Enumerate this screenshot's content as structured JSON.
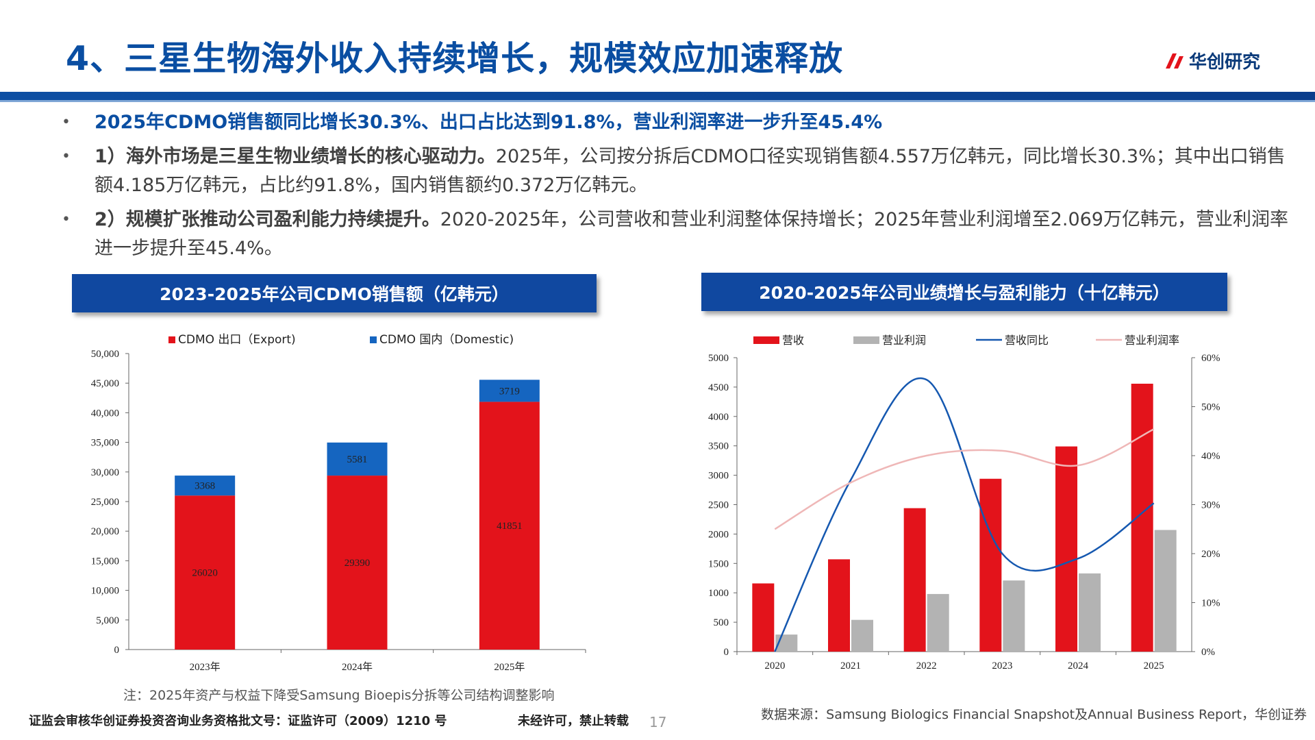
{
  "header": {
    "title": "4、三星生物海外收入持续增长，规模效应加速释放",
    "logo_text": "华创研究"
  },
  "bullets": [
    {
      "highlight": "2025年CDMO销售额同比增长30.3%、出口占比达到91.8%，营业利润率进一步升至45.4%",
      "lead": "",
      "text": ""
    },
    {
      "highlight": "",
      "lead": "1）海外市场是三星生物业绩增长的核心驱动力。",
      "text": "2025年，公司按分拆后CDMO口径实现销售额4.557万亿韩元，同比增长30.3%；其中出口销售额4.185万亿韩元，占比约91.8%，国内销售额约0.372万亿韩元。"
    },
    {
      "highlight": "",
      "lead": "2）规模扩张推动公司盈利能力持续提升。",
      "text": "2020-2025年，公司营收和营业利润整体保持增长；2025年营业利润增至2.069万亿韩元，营业利润率进一步提升至45.4%。"
    }
  ],
  "left_panel_title": "2023-2025年公司CDMO销售额（亿韩元）",
  "right_panel_title": "2020-2025年公司业绩增长与盈利能力（十亿韩元）",
  "note": "注：2025年资产与权益下降受Samsung Bioepis分拆等公司结构调整影响",
  "footer": {
    "license": "证监会审核华创证券投资咨询业务资格批文号：证监许可（2009）1210 号",
    "notice": "未经许可，禁止转载",
    "page": "17",
    "source": "数据来源：Samsung Biologics Financial Snapshot及Annual Business Report，华创证券"
  },
  "chart_data": [
    {
      "type": "bar",
      "stacked": true,
      "categories": [
        "2023年",
        "2024年",
        "2025年"
      ],
      "series": [
        {
          "name": "CDMO 出口（Export)",
          "values": [
            26020,
            29390,
            41851
          ],
          "color": "#e3131b"
        },
        {
          "name": "CDMO 国内（Domestic)",
          "values": [
            3368,
            5581,
            3719
          ],
          "color": "#1565c0"
        }
      ],
      "ylim": [
        0,
        50000
      ],
      "yticks": [
        "0",
        "5,000",
        "10,000",
        "15,000",
        "20,000",
        "25,000",
        "30,000",
        "35,000",
        "40,000",
        "45,000",
        "50,000"
      ],
      "legend": "top"
    },
    {
      "type": "bar",
      "categories": [
        "2020",
        "2021",
        "2022",
        "2023",
        "2024",
        "2025"
      ],
      "series": [
        {
          "name": "营收",
          "type": "bar",
          "axis": "left",
          "values": [
            1160,
            1570,
            2440,
            2940,
            3490,
            4557
          ],
          "color": "#e3131b"
        },
        {
          "name": "营业利润",
          "type": "bar",
          "axis": "left",
          "values": [
            290,
            540,
            980,
            1210,
            1330,
            2069
          ],
          "color": "#b3b3b3"
        },
        {
          "name": "营收同比",
          "type": "line",
          "axis": "right",
          "values": [
            0.0,
            0.35,
            0.555,
            0.2,
            0.19,
            0.303
          ],
          "color": "#1558b0"
        },
        {
          "name": "营业利润率",
          "type": "line",
          "axis": "right",
          "values": [
            0.25,
            0.345,
            0.4,
            0.41,
            0.38,
            0.454
          ],
          "color": "#efb7b7"
        }
      ],
      "ylim": [
        0,
        5000
      ],
      "yticks": [
        "0",
        "500",
        "1000",
        "1500",
        "2000",
        "2500",
        "3000",
        "3500",
        "4000",
        "4500",
        "5000"
      ],
      "y2lim": [
        0,
        0.6
      ],
      "y2ticks": [
        "0%",
        "10%",
        "20%",
        "30%",
        "40%",
        "50%",
        "60%"
      ],
      "legend": "top"
    }
  ]
}
